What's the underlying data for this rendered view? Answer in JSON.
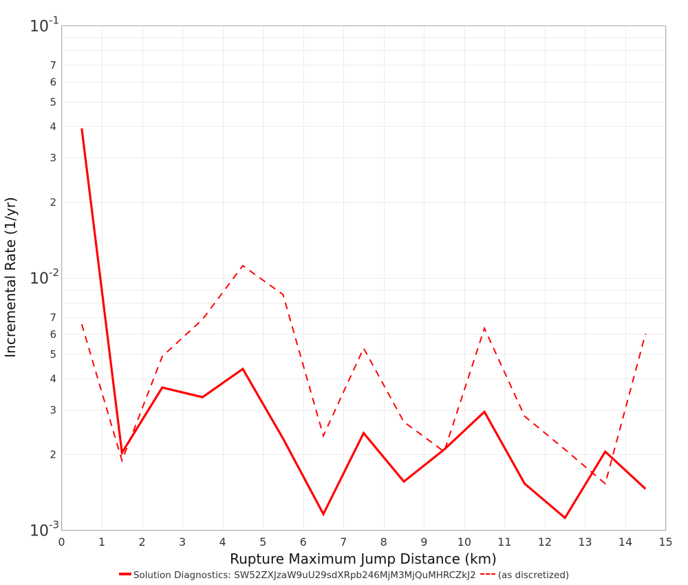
{
  "chart_data": {
    "type": "line",
    "title": "",
    "xlabel": "Rupture Maximum Jump Distance (km)",
    "ylabel": "Incremental Rate (1/yr)",
    "xlim": [
      0,
      15
    ],
    "ylim": [
      0.001,
      0.1
    ],
    "yscale": "log",
    "grid": true,
    "legend_position": "bottom",
    "x_ticks": [
      "0",
      "1",
      "2",
      "3",
      "4",
      "5",
      "6",
      "7",
      "8",
      "9",
      "10",
      "11",
      "12",
      "13",
      "14",
      "15"
    ],
    "y_major_ticks": [
      {
        "base": "10",
        "exp": "-1",
        "value": 0.1
      },
      {
        "base": "10",
        "exp": "-2",
        "value": 0.01
      },
      {
        "base": "10",
        "exp": "-3",
        "value": 0.001
      }
    ],
    "y_minor_labels": [
      "2",
      "3",
      "4",
      "5",
      "6",
      "7"
    ],
    "x": [
      0.5,
      1.5,
      2.5,
      3.5,
      4.5,
      5.5,
      6.5,
      7.5,
      8.5,
      9.5,
      10.5,
      11.5,
      12.5,
      13.5,
      14.5
    ],
    "series": [
      {
        "name": "Solution Diagnostics: SW52ZXJzaW9uU29sdXRpb246MjM3MjQuMHRCZkJ2",
        "style": "solid",
        "color": "#ff0000",
        "values": [
          0.0392,
          0.00203,
          0.00368,
          0.00337,
          0.00436,
          0.00231,
          0.00116,
          0.00243,
          0.00156,
          0.00209,
          0.00295,
          0.00153,
          0.00112,
          0.00205,
          0.00146
        ]
      },
      {
        "name": "(as discretized)",
        "style": "dashed",
        "color": "#ff0000",
        "values": [
          0.00656,
          0.00189,
          0.00489,
          0.00686,
          0.0112,
          0.0086,
          0.00237,
          0.00527,
          0.00269,
          0.00205,
          0.00632,
          0.00283,
          0.00209,
          0.00153,
          0.00601
        ]
      }
    ]
  },
  "legend": {
    "series_1_label": "Solution Diagnostics: SW52ZXJzaW9uU29sdXRpb246MjM3MjQuMHRCZkJ2",
    "series_2_label": "(as discretized)"
  },
  "axes": {
    "x_title": "Rupture Maximum Jump Distance (km)",
    "y_title": "Incremental Rate (1/yr)"
  },
  "colors": {
    "series": "#ff0000",
    "grid": "#ebebeb",
    "plot_border": "#aaaaaa"
  }
}
